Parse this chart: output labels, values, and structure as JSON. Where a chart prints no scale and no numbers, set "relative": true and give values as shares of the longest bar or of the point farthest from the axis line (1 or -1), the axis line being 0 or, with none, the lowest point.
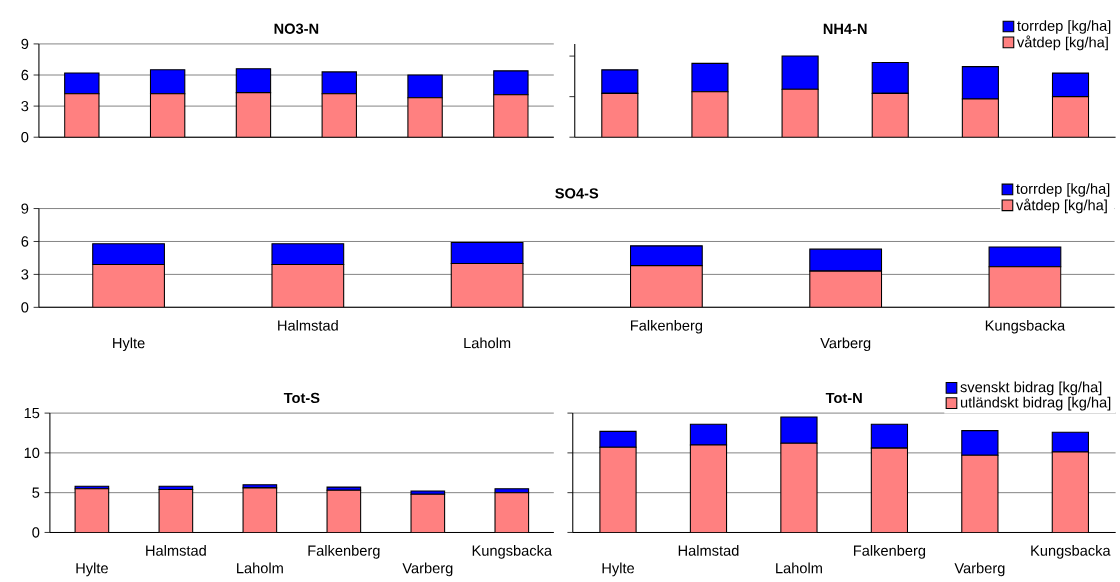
{
  "chart_data": [
    {
      "type": "bar",
      "title": "NO3-N",
      "stacked": true,
      "categories": [
        null,
        null,
        null,
        null,
        null,
        null
      ],
      "ylim": [
        0,
        9
      ],
      "yticks": [
        0,
        3,
        6,
        9
      ],
      "grid": "y",
      "tick_labels": "y",
      "series": [
        {
          "color": "#ff8080",
          "values": [
            4.2,
            4.2,
            4.3,
            4.2,
            3.8,
            4.1
          ]
        },
        {
          "color": "#0000ff",
          "values": [
            2.0,
            2.3,
            2.3,
            2.1,
            2.2,
            2.3
          ]
        }
      ]
    },
    {
      "type": "bar",
      "title": "NH4-N",
      "stacked": true,
      "relative": true,
      "categories": [
        null,
        null,
        null,
        null,
        null,
        null
      ],
      "tick_labels": false,
      "legend": "top right",
      "series": [
        {
          "name": "våtdep [kg/ha]",
          "color": "#ff8080",
          "values": [
            0.54,
            0.56,
            0.59,
            0.54,
            0.47,
            0.5
          ]
        },
        {
          "name": "torrdep [kg/ha]",
          "color": "#0000ff",
          "values": [
            0.29,
            0.35,
            0.41,
            0.38,
            0.4,
            0.29
          ]
        }
      ]
    },
    {
      "type": "bar",
      "title": "SO4-S",
      "stacked": true,
      "categories": [
        "Hylte",
        "Halmstad",
        "Laholm",
        "Falkenberg",
        "Varberg",
        "Kungsbacka"
      ],
      "ylim": [
        0,
        9
      ],
      "yticks": [
        0,
        3,
        6,
        9
      ],
      "grid": "y",
      "legend": "top right",
      "series": [
        {
          "name": "våtdep [kg/ha]",
          "color": "#ff8080",
          "values": [
            3.9,
            3.9,
            4.0,
            3.8,
            3.3,
            3.7
          ]
        },
        {
          "name": "torrdep [kg/ha]",
          "color": "#0000ff",
          "values": [
            1.9,
            1.9,
            1.9,
            1.8,
            2.0,
            1.8
          ]
        }
      ]
    },
    {
      "type": "bar",
      "title": "Tot-S",
      "stacked": true,
      "categories": [
        "Hylte",
        "Halmstad",
        "Laholm",
        "Falkenberg",
        "Varberg",
        "Kungsbacka"
      ],
      "ylim": [
        0,
        15
      ],
      "yticks": [
        0,
        5,
        10,
        15
      ],
      "grid": "y",
      "series": [
        {
          "color": "#ff8080",
          "values": [
            5.5,
            5.4,
            5.6,
            5.3,
            4.8,
            5.0
          ]
        },
        {
          "color": "#0000ff",
          "values": [
            0.3,
            0.4,
            0.4,
            0.4,
            0.4,
            0.5
          ]
        }
      ]
    },
    {
      "type": "bar",
      "title": "Tot-N",
      "stacked": true,
      "categories": [
        "Hylte",
        "Halmstad",
        "Laholm",
        "Falkenberg",
        "Varberg",
        "Kungsbacka"
      ],
      "ylim": [
        0,
        15
      ],
      "yticks": [
        0,
        5,
        10,
        15
      ],
      "grid": "y",
      "tick_labels": "x",
      "legend": "top right",
      "series": [
        {
          "name": "utländskt bidrag [kg/ha]",
          "color": "#ff8080",
          "values": [
            10.7,
            11.0,
            11.2,
            10.6,
            9.7,
            10.1
          ]
        },
        {
          "name": "svenskt bidrag [kg/ha]",
          "color": "#0000ff",
          "values": [
            2.0,
            2.6,
            3.3,
            3.0,
            3.1,
            2.5
          ]
        }
      ]
    }
  ]
}
